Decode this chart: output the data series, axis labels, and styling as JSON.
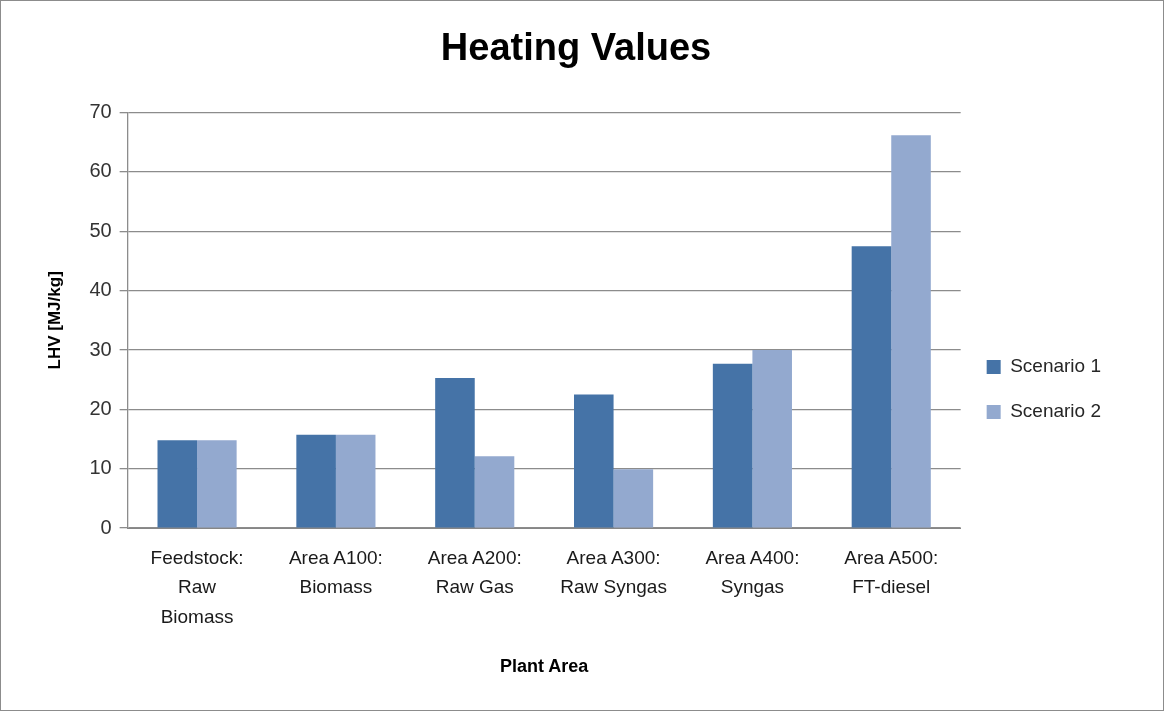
{
  "chart_data": {
    "type": "bar",
    "title": "Heating Values",
    "xlabel": "Plant Area",
    "ylabel": "LHV [MJ/kg]",
    "categories": [
      "Feedstock: Raw Biomass",
      "Area A100: Biomass",
      "Area A200: Raw Gas",
      "Area A300: Raw Syngas",
      "Area A400: Syngas",
      "Area A500: FT-diesel"
    ],
    "series": [
      {
        "name": "Scenario 1",
        "color": "#4573a7",
        "values": [
          14.8,
          15.7,
          25.3,
          22.5,
          27.7,
          47.5
        ]
      },
      {
        "name": "Scenario 2",
        "color": "#93a9cf",
        "values": [
          14.8,
          15.7,
          12.1,
          9.9,
          30.0,
          66.2
        ]
      }
    ],
    "ylim": [
      0,
      70
    ],
    "yticks": [
      0,
      10,
      20,
      30,
      40,
      50,
      60,
      70
    ],
    "grid": "y",
    "legend": "right"
  }
}
